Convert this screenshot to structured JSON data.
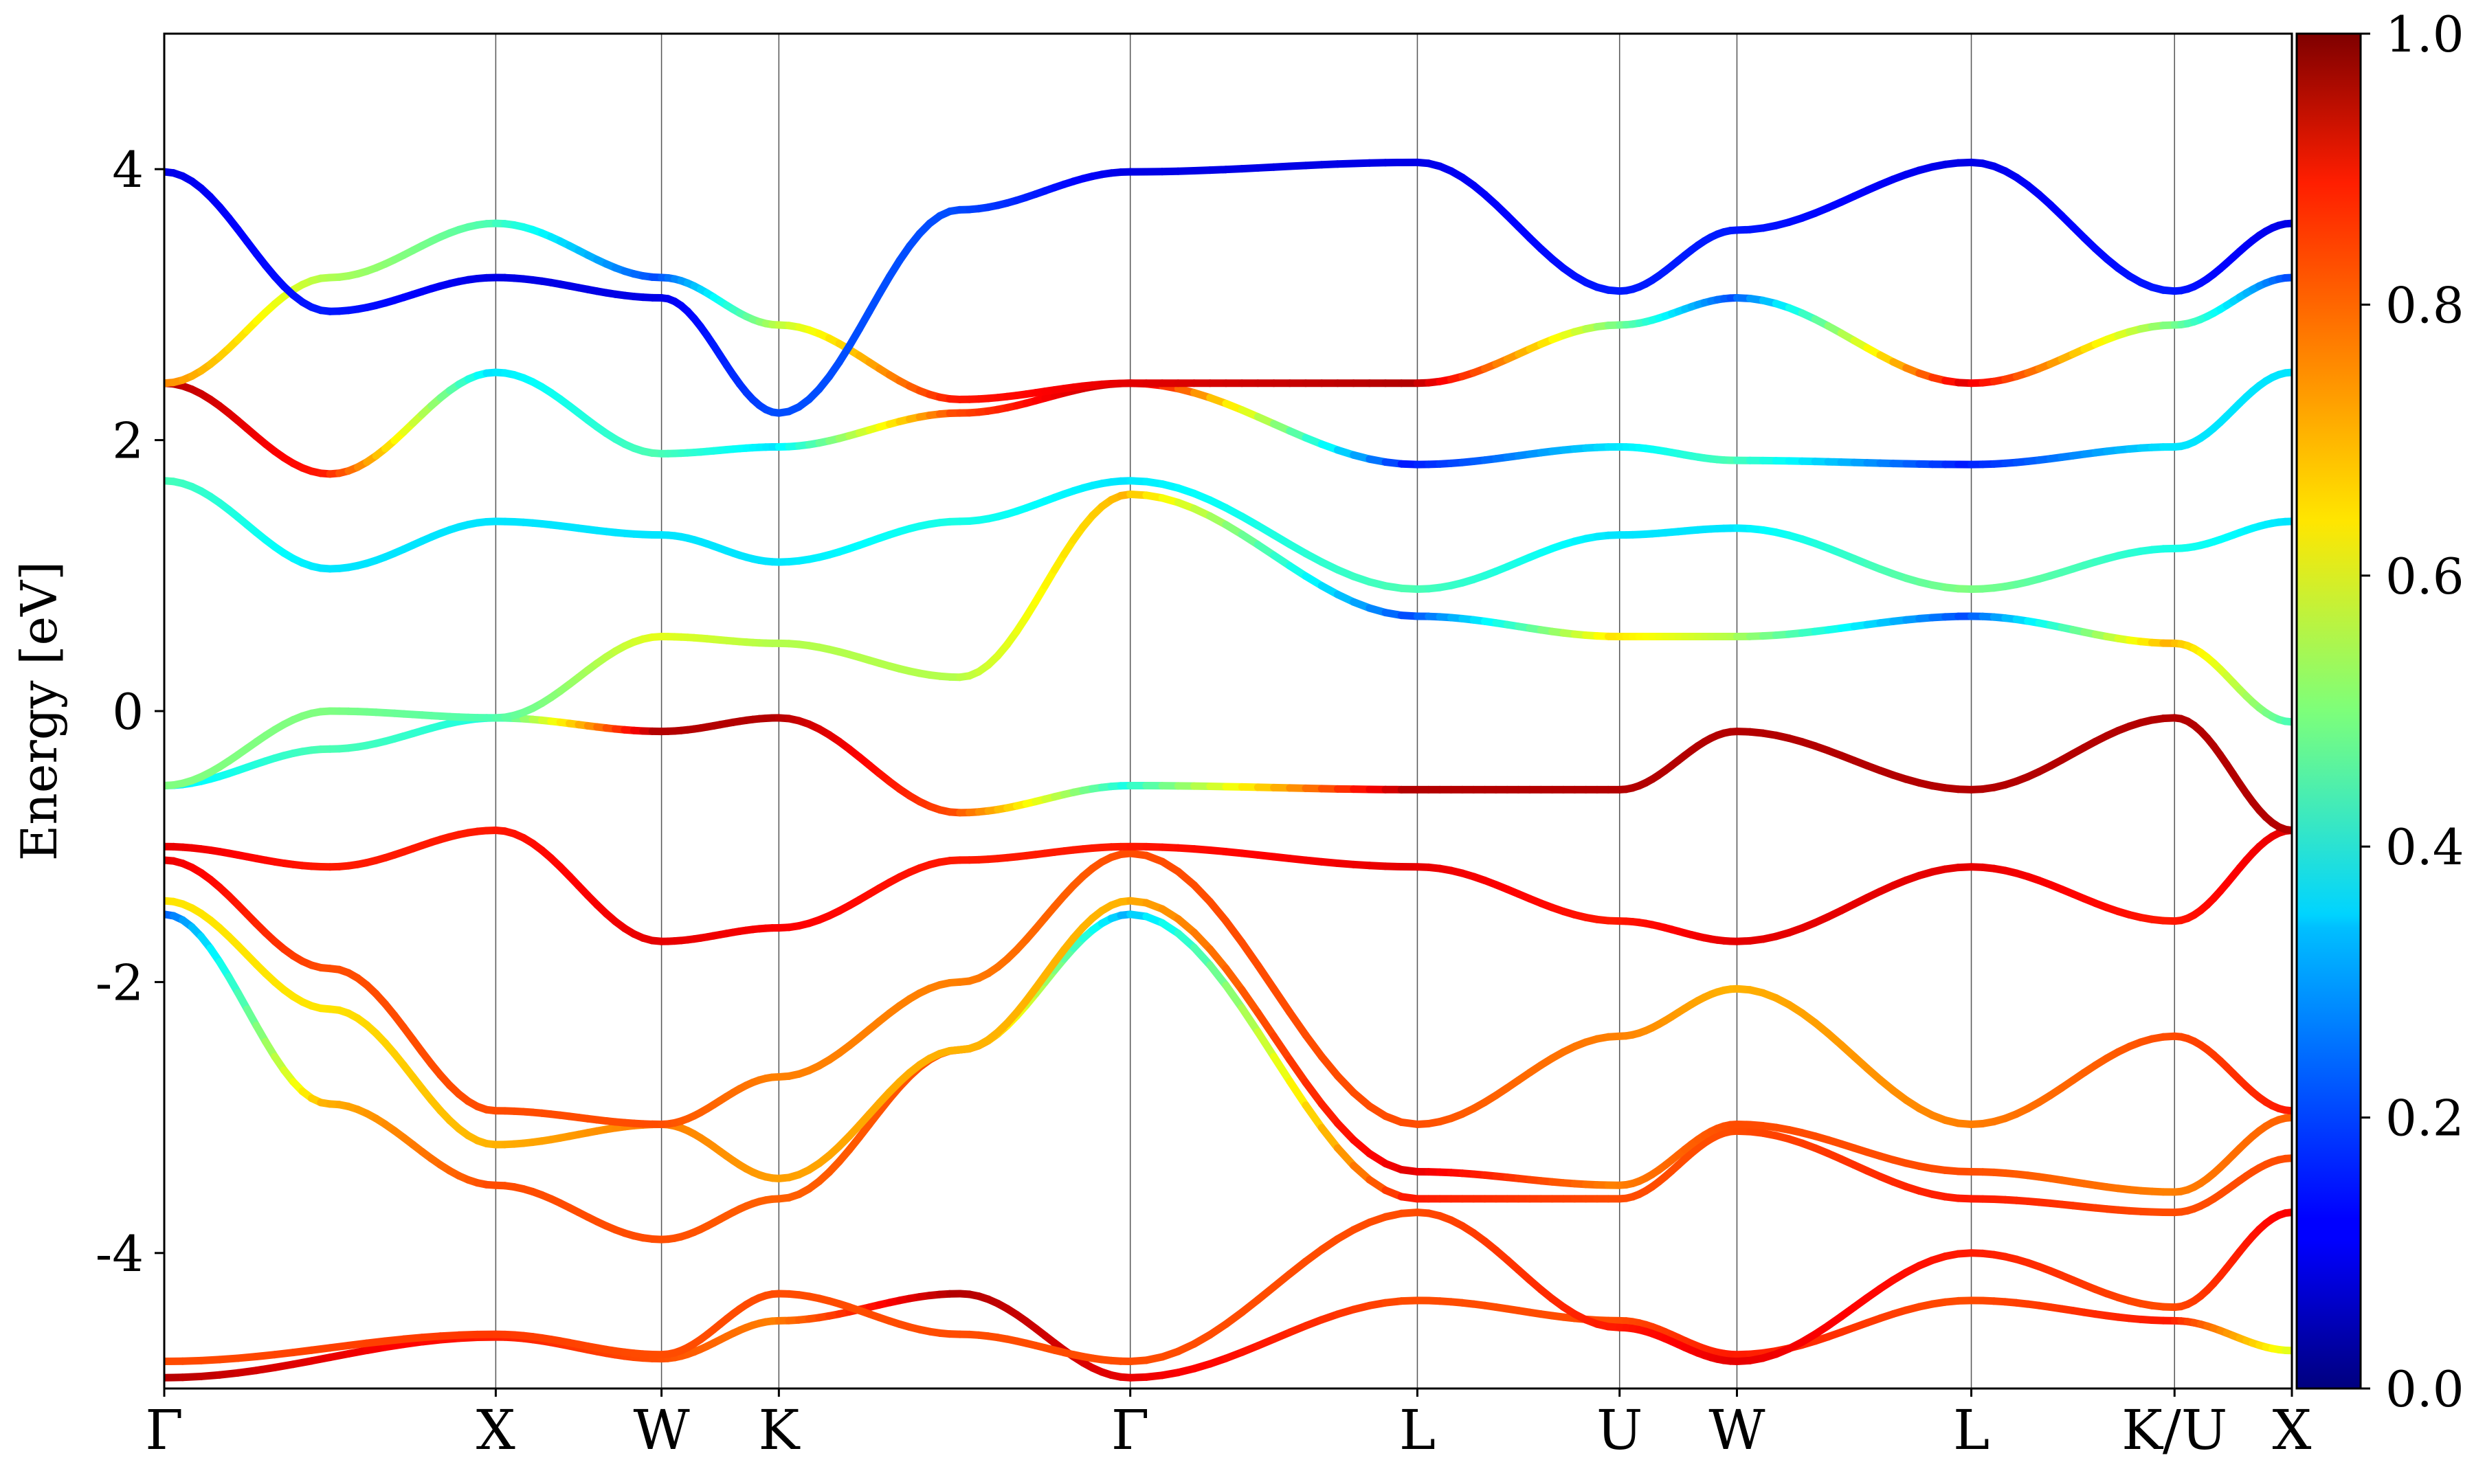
{
  "chart_data": {
    "type": "line",
    "title": "",
    "xlabel": "",
    "ylabel": "Energy [eV]",
    "ylim": [
      -5,
      5
    ],
    "yticks": [
      4,
      2,
      0,
      -2,
      -4
    ],
    "ytick_labels": [
      "4",
      "2",
      "0",
      "-2",
      "-4"
    ],
    "high_symmetry_points": [
      {
        "label": "Γ",
        "k": 0.0
      },
      {
        "label": "X",
        "k": 1.0
      },
      {
        "label": "W",
        "k": 1.5
      },
      {
        "label": "K",
        "k": 1.854
      },
      {
        "label": "Γ",
        "k": 2.914
      },
      {
        "label": "L",
        "k": 3.78
      },
      {
        "label": "U",
        "k": 4.39
      },
      {
        "label": "W",
        "k": 4.744
      },
      {
        "label": "L",
        "k": 5.451
      },
      {
        "label": "K/U",
        "k": 6.064
      },
      {
        "label": "X",
        "k": 6.418
      }
    ],
    "colorbar": {
      "colormap": "jet",
      "range": [
        0.0,
        1.0
      ],
      "tick_labels": [
        "1.0",
        "0.8",
        "0.6",
        "0.4",
        "0.2",
        "0.0"
      ]
    },
    "series": [
      {
        "band": 1,
        "points": [
          [
            0,
            -4.92,
            0.95
          ],
          [
            1,
            -4.62,
            0.85
          ],
          [
            1.5,
            -4.78,
            0.8
          ],
          [
            1.854,
            -4.5,
            0.75
          ],
          [
            2.4,
            -4.3,
            0.95
          ],
          [
            2.914,
            -4.92,
            0.9
          ],
          [
            3.78,
            -4.35,
            0.8
          ],
          [
            4.39,
            -4.5,
            0.8
          ],
          [
            4.744,
            -4.75,
            0.85
          ],
          [
            5.451,
            -4.35,
            0.8
          ],
          [
            6.064,
            -4.5,
            0.85
          ],
          [
            6.418,
            -4.72,
            0.6
          ]
        ]
      },
      {
        "band": 2,
        "points": [
          [
            0,
            -4.8,
            0.8
          ],
          [
            1,
            -4.6,
            0.82
          ],
          [
            1.5,
            -4.75,
            0.8
          ],
          [
            1.854,
            -4.3,
            0.8
          ],
          [
            2.4,
            -4.6,
            0.8
          ],
          [
            2.914,
            -4.8,
            0.8
          ],
          [
            3.78,
            -3.7,
            0.8
          ],
          [
            4.39,
            -4.55,
            0.85
          ],
          [
            4.744,
            -4.8,
            0.9
          ],
          [
            5.451,
            -4.0,
            0.85
          ],
          [
            6.064,
            -4.4,
            0.8
          ],
          [
            6.418,
            -3.7,
            0.88
          ]
        ]
      },
      {
        "band": 3,
        "points": [
          [
            0,
            -1.5,
            0.2
          ],
          [
            0.5,
            -2.9,
            0.7
          ],
          [
            1,
            -3.5,
            0.8
          ],
          [
            1.5,
            -3.9,
            0.8
          ],
          [
            1.854,
            -3.6,
            0.78
          ],
          [
            2.4,
            -2.5,
            0.8
          ],
          [
            2.914,
            -1.5,
            0.3
          ],
          [
            3.78,
            -3.6,
            0.85
          ],
          [
            4.39,
            -3.6,
            0.8
          ],
          [
            4.744,
            -3.1,
            0.8
          ],
          [
            5.451,
            -3.6,
            0.85
          ],
          [
            6.064,
            -3.7,
            0.8
          ],
          [
            6.418,
            -3.3,
            0.8
          ]
        ]
      },
      {
        "band": 4,
        "points": [
          [
            0,
            -1.4,
            0.65
          ],
          [
            0.5,
            -2.2,
            0.65
          ],
          [
            1,
            -3.2,
            0.7
          ],
          [
            1.5,
            -3.05,
            0.75
          ],
          [
            1.854,
            -3.45,
            0.72
          ],
          [
            2.4,
            -2.5,
            0.7
          ],
          [
            2.914,
            -1.4,
            0.7
          ],
          [
            3.78,
            -3.4,
            0.9
          ],
          [
            4.39,
            -3.5,
            0.75
          ],
          [
            4.744,
            -3.05,
            0.8
          ],
          [
            5.451,
            -3.4,
            0.8
          ],
          [
            6.064,
            -3.55,
            0.75
          ],
          [
            6.418,
            -3.0,
            0.78
          ]
        ]
      },
      {
        "band": 5,
        "points": [
          [
            0,
            -1.1,
            0.9
          ],
          [
            0.5,
            -1.9,
            0.8
          ],
          [
            1,
            -2.95,
            0.8
          ],
          [
            1.5,
            -3.05,
            0.8
          ],
          [
            1.854,
            -2.7,
            0.75
          ],
          [
            2.4,
            -2.0,
            0.75
          ],
          [
            2.914,
            -1.05,
            0.8
          ],
          [
            3.78,
            -3.05,
            0.8
          ],
          [
            4.39,
            -2.4,
            0.75
          ],
          [
            4.744,
            -2.05,
            0.7
          ],
          [
            5.451,
            -3.05,
            0.75
          ],
          [
            6.064,
            -2.4,
            0.8
          ],
          [
            6.418,
            -2.95,
            0.85
          ]
        ]
      },
      {
        "band": 6,
        "points": [
          [
            0,
            -1.0,
            0.9
          ],
          [
            0.5,
            -1.15,
            0.85
          ],
          [
            1,
            -0.88,
            0.85
          ],
          [
            1.5,
            -1.7,
            0.9
          ],
          [
            1.854,
            -1.6,
            0.88
          ],
          [
            2.4,
            -1.1,
            0.85
          ],
          [
            2.914,
            -1.0,
            0.85
          ],
          [
            3.78,
            -1.15,
            0.9
          ],
          [
            4.39,
            -1.55,
            0.85
          ],
          [
            4.744,
            -1.7,
            0.9
          ],
          [
            5.451,
            -1.15,
            0.9
          ],
          [
            6.064,
            -1.55,
            0.85
          ],
          [
            6.418,
            -0.88,
            0.9
          ]
        ]
      },
      {
        "band": 7,
        "points": [
          [
            0,
            -0.55,
            0.35
          ],
          [
            0.5,
            -0.28,
            0.45
          ],
          [
            1,
            -0.05,
            0.4
          ],
          [
            1.5,
            -0.15,
            0.95
          ],
          [
            1.854,
            -0.05,
            0.95
          ],
          [
            2.4,
            -0.75,
            0.8
          ],
          [
            2.914,
            -0.55,
            0.4
          ],
          [
            3.78,
            -0.58,
            0.95
          ],
          [
            4.39,
            -0.58,
            0.95
          ],
          [
            4.744,
            -0.15,
            0.95
          ],
          [
            5.451,
            -0.58,
            0.95
          ],
          [
            6.064,
            -0.05,
            0.95
          ],
          [
            6.418,
            -0.88,
            0.95
          ]
        ]
      },
      {
        "band": 8,
        "points": [
          [
            0,
            -0.55,
            0.5
          ],
          [
            0.5,
            0.0,
            0.5
          ],
          [
            1,
            -0.05,
            0.45
          ],
          [
            1.5,
            0.55,
            0.6
          ],
          [
            1.854,
            0.5,
            0.55
          ],
          [
            2.4,
            0.25,
            0.55
          ],
          [
            2.914,
            1.6,
            0.7
          ],
          [
            3.78,
            0.7,
            0.2
          ],
          [
            4.39,
            0.55,
            0.65
          ],
          [
            4.744,
            0.55,
            0.55
          ],
          [
            5.451,
            0.7,
            0.2
          ],
          [
            6.064,
            0.5,
            0.7
          ],
          [
            6.418,
            -0.08,
            0.45
          ]
        ]
      },
      {
        "band": 9,
        "points": [
          [
            0,
            1.7,
            0.45
          ],
          [
            0.5,
            1.05,
            0.35
          ],
          [
            1,
            1.4,
            0.35
          ],
          [
            1.5,
            1.3,
            0.35
          ],
          [
            1.854,
            1.1,
            0.35
          ],
          [
            2.4,
            1.4,
            0.4
          ],
          [
            2.914,
            1.7,
            0.35
          ],
          [
            3.78,
            0.9,
            0.45
          ],
          [
            4.39,
            1.3,
            0.35
          ],
          [
            4.744,
            1.35,
            0.35
          ],
          [
            5.451,
            0.9,
            0.5
          ],
          [
            6.064,
            1.2,
            0.4
          ],
          [
            6.418,
            1.4,
            0.35
          ]
        ]
      },
      {
        "band": 10,
        "points": [
          [
            0,
            2.42,
            0.95
          ],
          [
            0.5,
            1.75,
            0.85
          ],
          [
            1,
            2.5,
            0.35
          ],
          [
            1.5,
            1.9,
            0.45
          ],
          [
            1.854,
            1.95,
            0.35
          ],
          [
            2.4,
            2.2,
            0.8
          ],
          [
            2.914,
            2.42,
            0.95
          ],
          [
            3.78,
            1.82,
            0.15
          ],
          [
            4.39,
            1.95,
            0.35
          ],
          [
            4.744,
            1.85,
            0.45
          ],
          [
            5.451,
            1.82,
            0.15
          ],
          [
            6.064,
            1.95,
            0.35
          ],
          [
            6.418,
            2.5,
            0.35
          ]
        ]
      },
      {
        "band": 11,
        "points": [
          [
            0,
            2.42,
            0.75
          ],
          [
            0.5,
            3.2,
            0.55
          ],
          [
            1,
            3.6,
            0.45
          ],
          [
            1.5,
            3.2,
            0.2
          ],
          [
            1.854,
            2.85,
            0.55
          ],
          [
            2.4,
            2.3,
            0.85
          ],
          [
            2.914,
            2.42,
            0.9
          ],
          [
            3.78,
            2.42,
            0.95
          ],
          [
            4.39,
            2.85,
            0.5
          ],
          [
            4.744,
            3.05,
            0.2
          ],
          [
            5.451,
            2.42,
            0.9
          ],
          [
            6.064,
            2.85,
            0.5
          ],
          [
            6.418,
            3.2,
            0.2
          ]
        ]
      },
      {
        "band": 12,
        "points": [
          [
            0,
            3.98,
            0.1
          ],
          [
            0.5,
            2.95,
            0.15
          ],
          [
            1,
            3.2,
            0.1
          ],
          [
            1.5,
            3.05,
            0.1
          ],
          [
            1.854,
            2.2,
            0.2
          ],
          [
            2.4,
            3.7,
            0.2
          ],
          [
            2.914,
            3.98,
            0.1
          ],
          [
            3.78,
            4.05,
            0.1
          ],
          [
            4.39,
            3.1,
            0.15
          ],
          [
            4.744,
            3.55,
            0.15
          ],
          [
            5.451,
            4.05,
            0.1
          ],
          [
            6.064,
            3.1,
            0.15
          ],
          [
            6.418,
            3.6,
            0.1
          ]
        ]
      }
    ]
  }
}
